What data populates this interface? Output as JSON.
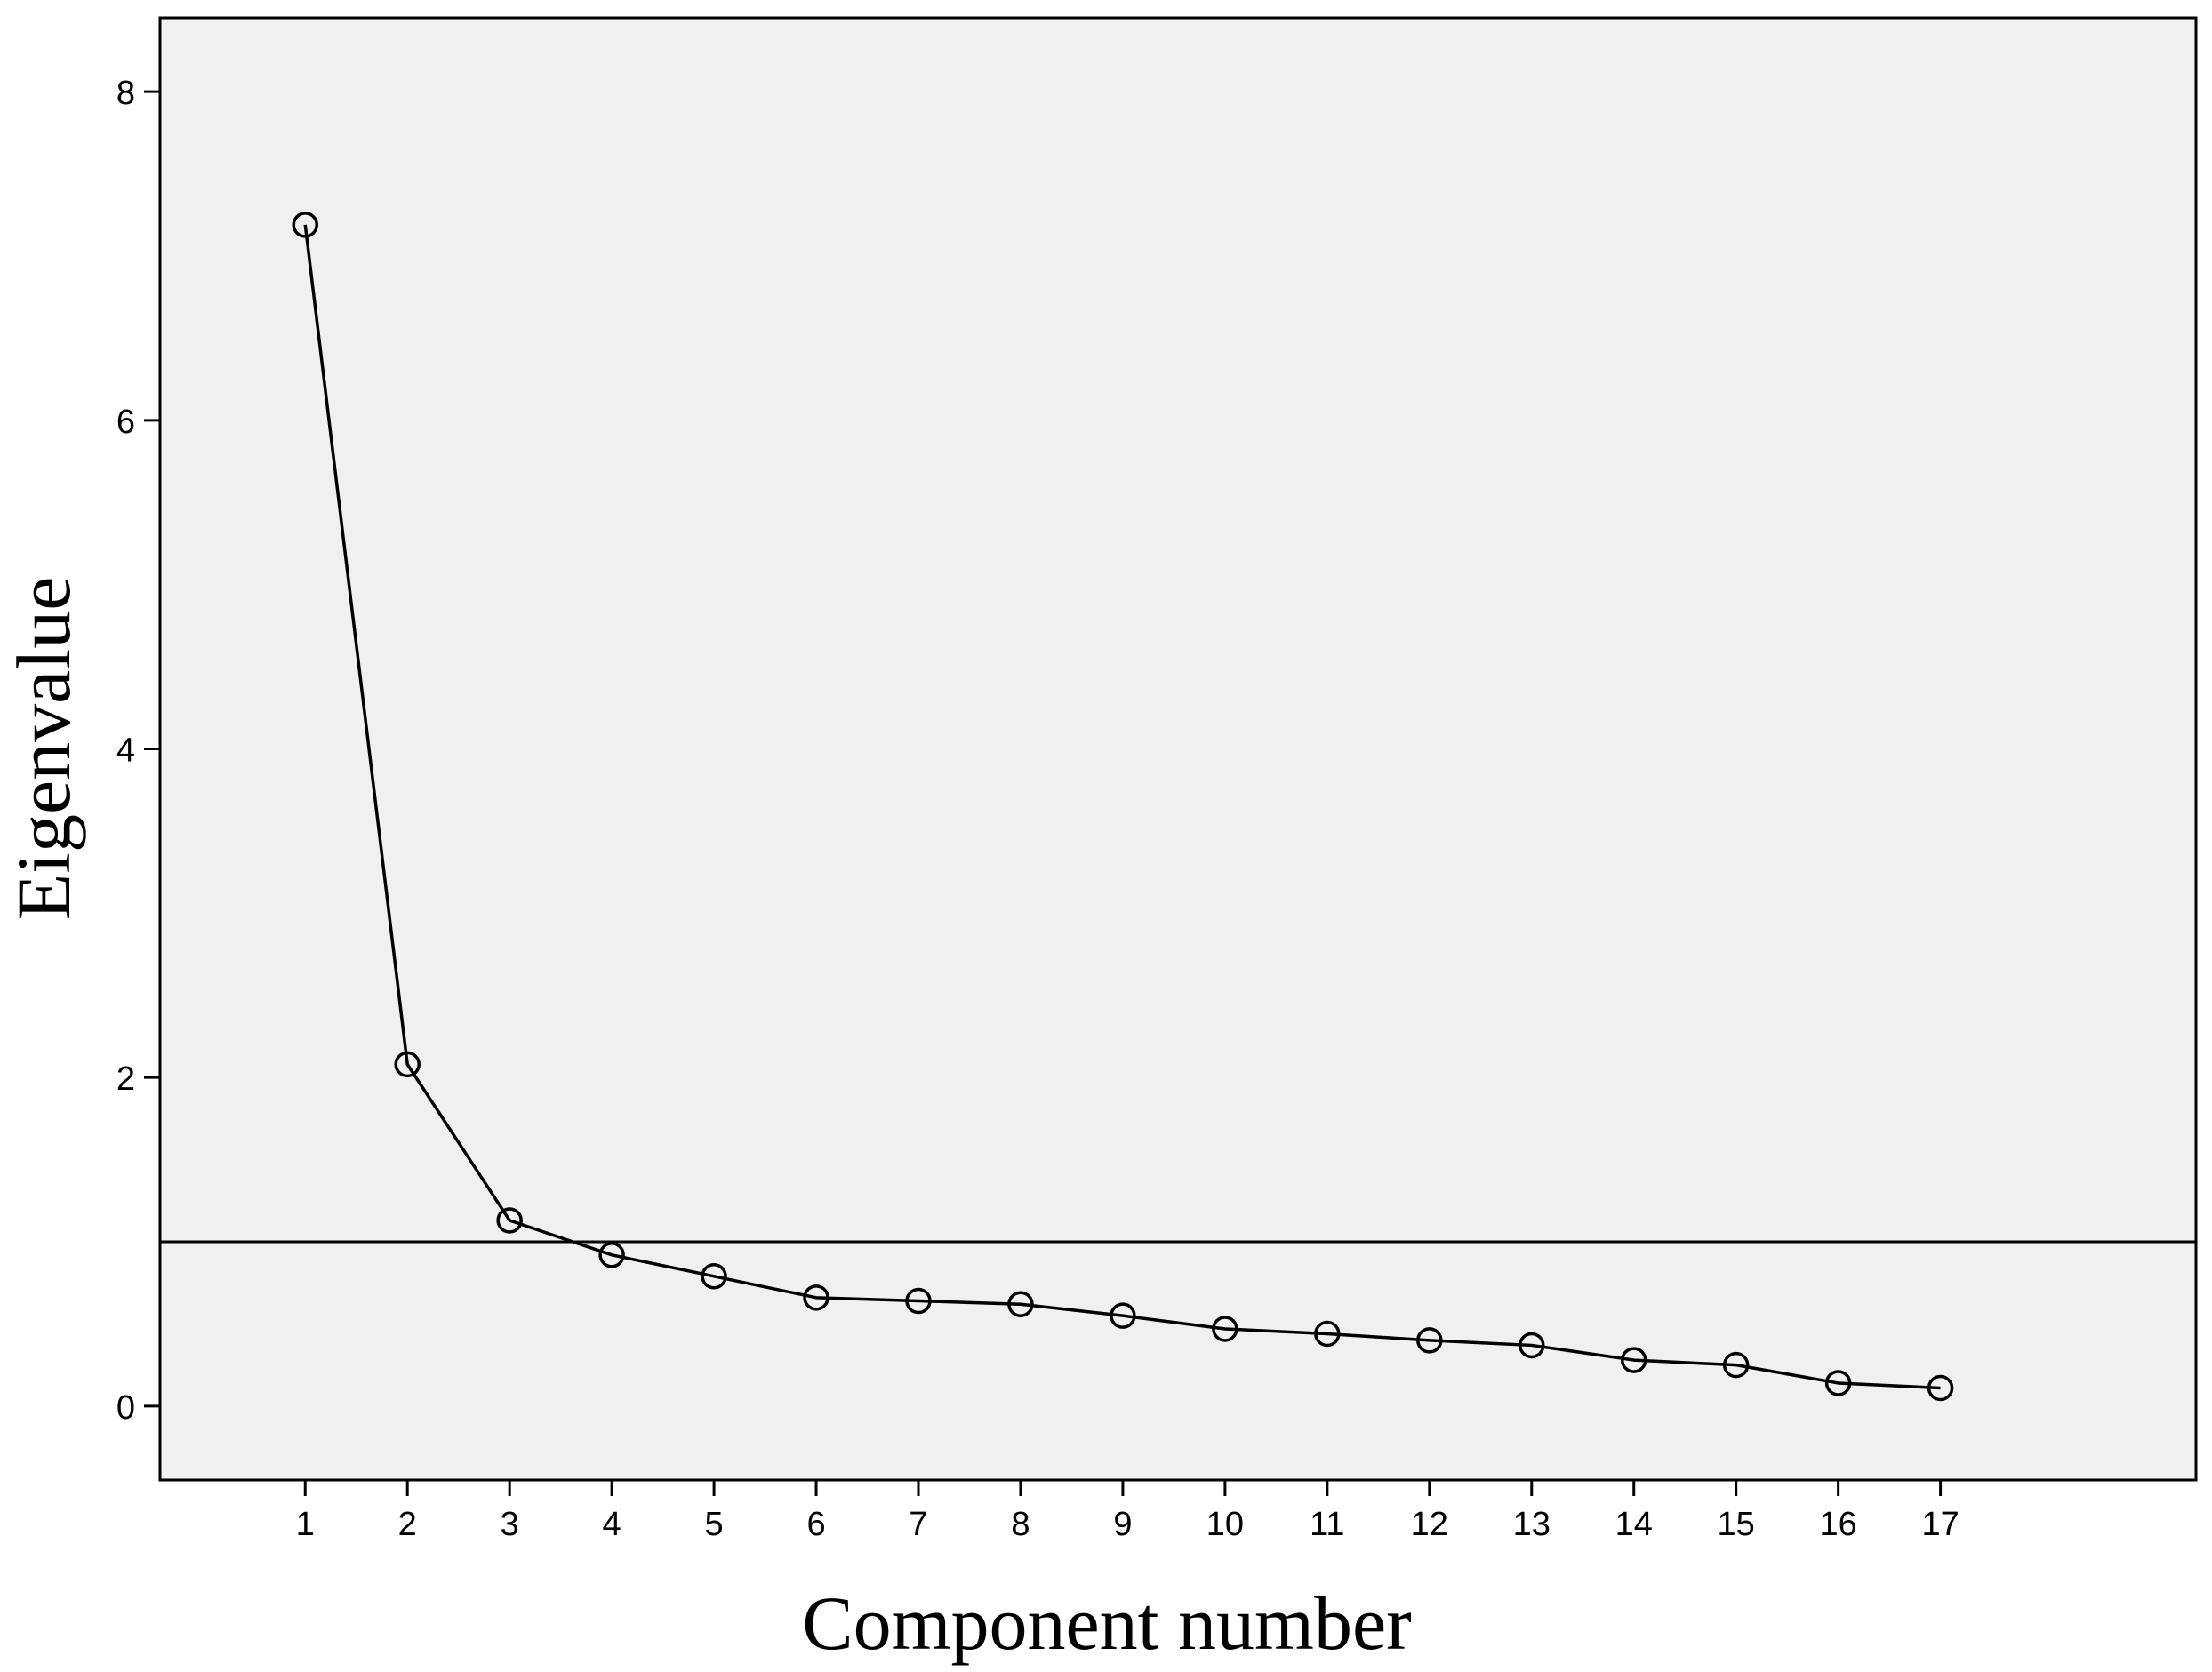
{
  "chart_data": {
    "type": "line",
    "title": "",
    "xlabel": "Component number",
    "ylabel": "Eigenvalue",
    "categories": [
      "1",
      "2",
      "3",
      "4",
      "5",
      "6",
      "7",
      "8",
      "9",
      "10",
      "11",
      "12",
      "13",
      "14",
      "15",
      "16",
      "17"
    ],
    "x": [
      1,
      2,
      3,
      4,
      5,
      6,
      7,
      8,
      9,
      10,
      11,
      12,
      13,
      14,
      15,
      16,
      17
    ],
    "series": [
      {
        "values": [
          7.19,
          2.08,
          1.13,
          0.92,
          0.79,
          0.66,
          0.64,
          0.62,
          0.55,
          0.47,
          0.44,
          0.4,
          0.37,
          0.28,
          0.25,
          0.14,
          0.11
        ]
      }
    ],
    "reference_line": {
      "y": 1
    },
    "yticks": [
      "0",
      "2",
      "4",
      "6",
      "8"
    ],
    "ytick_values": [
      0,
      2,
      4,
      6,
      8
    ],
    "xlim": [
      -0.42,
      19.5
    ],
    "ylim": [
      -0.45,
      8.45
    ],
    "grid": false,
    "legend": "none",
    "marker": "open-circle",
    "colors": {
      "background": "#f0f0f0",
      "line": "#000000",
      "frame": "#000000"
    }
  }
}
